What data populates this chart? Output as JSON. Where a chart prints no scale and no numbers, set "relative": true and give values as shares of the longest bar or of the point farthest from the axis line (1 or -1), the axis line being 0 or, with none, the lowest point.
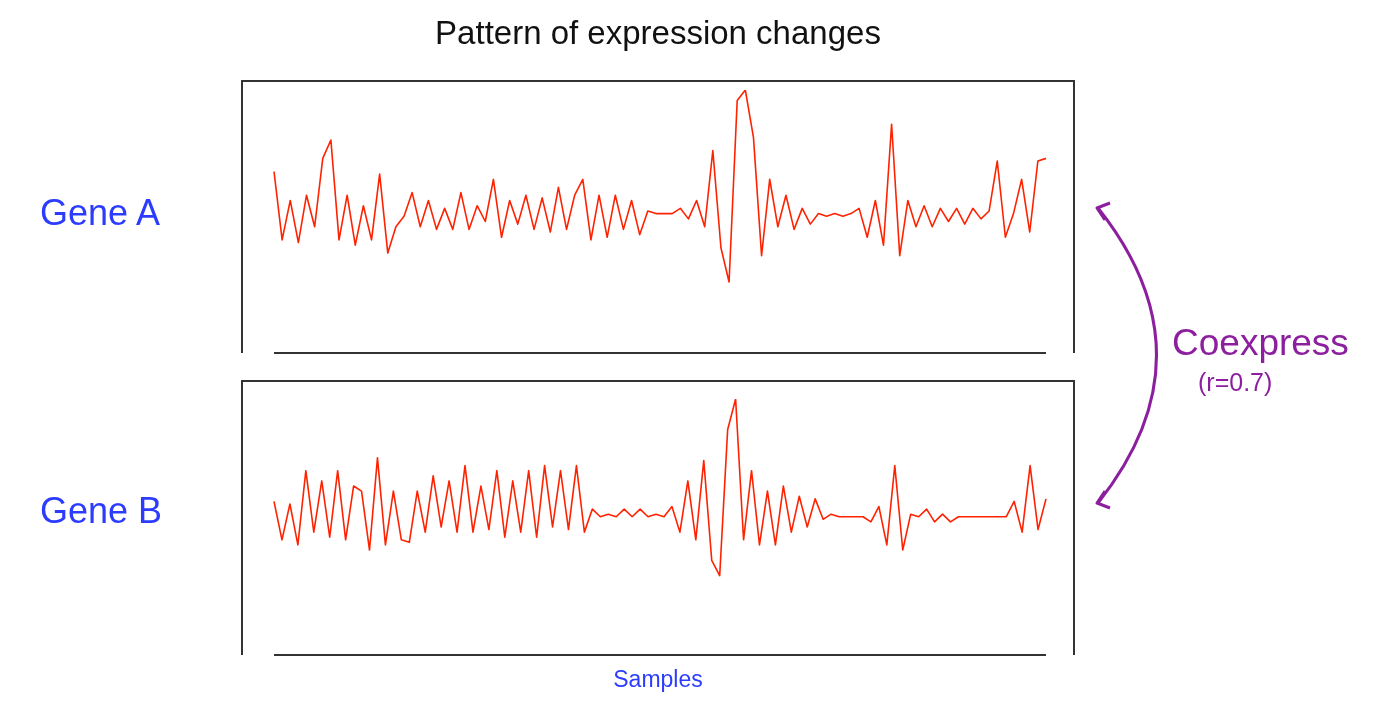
{
  "chart_data": [
    {
      "type": "line",
      "title": "Pattern of expression changes",
      "ylabel": "Gene A",
      "relative": true,
      "color": "#ff2200",
      "annotations": [
        "Coexpress",
        "(r=0.7)"
      ],
      "categories": [
        null,
        null,
        null,
        null,
        null,
        null,
        null,
        null,
        null,
        null,
        null,
        null,
        null,
        null,
        null,
        null,
        null,
        null,
        null,
        null,
        null,
        null,
        null,
        null,
        null,
        null,
        null,
        null,
        null,
        null,
        null,
        null,
        null,
        null,
        null,
        null,
        null,
        null,
        null,
        null,
        null,
        null,
        null,
        null,
        null,
        null,
        null,
        null,
        null,
        null,
        null,
        null,
        null,
        null,
        null,
        null,
        null,
        null,
        null,
        null,
        null,
        null,
        null,
        null,
        null,
        null,
        null,
        null,
        null,
        null,
        null,
        null,
        null,
        null,
        null,
        null,
        null,
        null,
        null,
        null,
        null,
        null,
        null,
        null,
        null,
        null,
        null,
        null,
        null,
        null,
        null,
        null,
        null,
        null,
        null,
        null
      ],
      "values": [
        0.69,
        0.43,
        0.58,
        0.42,
        0.6,
        0.48,
        0.74,
        0.81,
        0.43,
        0.6,
        0.41,
        0.56,
        0.43,
        0.68,
        0.38,
        0.48,
        0.52,
        0.61,
        0.48,
        0.58,
        0.47,
        0.55,
        0.47,
        0.61,
        0.47,
        0.56,
        0.5,
        0.66,
        0.44,
        0.58,
        0.49,
        0.6,
        0.47,
        0.59,
        0.46,
        0.63,
        0.47,
        0.6,
        0.66,
        0.43,
        0.6,
        0.44,
        0.6,
        0.47,
        0.58,
        0.45,
        0.54,
        0.53,
        0.53,
        0.53,
        0.55,
        0.51,
        0.58,
        0.48,
        0.77,
        0.4,
        0.27,
        0.96,
        1,
        0.82,
        0.37,
        0.66,
        0.48,
        0.6,
        0.47,
        0.55,
        0.49,
        0.53,
        0.52,
        0.53,
        0.52,
        0.53,
        0.55,
        0.44,
        0.58,
        0.41,
        0.87,
        0.37,
        0.58,
        0.48,
        0.56,
        0.48,
        0.55,
        0.5,
        0.55,
        0.49,
        0.55,
        0.51,
        0.54,
        0.73,
        0.44,
        0.53,
        0.66,
        0.46,
        0.73,
        0.74
      ]
    },
    {
      "type": "line",
      "ylabel": "Gene B",
      "xlabel": "Samples",
      "relative": true,
      "color": "#ff2200",
      "categories": [
        null,
        null,
        null,
        null,
        null,
        null,
        null,
        null,
        null,
        null,
        null,
        null,
        null,
        null,
        null,
        null,
        null,
        null,
        null,
        null,
        null,
        null,
        null,
        null,
        null,
        null,
        null,
        null,
        null,
        null,
        null,
        null,
        null,
        null,
        null,
        null,
        null,
        null,
        null,
        null,
        null,
        null,
        null,
        null,
        null,
        null,
        null,
        null,
        null,
        null,
        null,
        null,
        null,
        null,
        null,
        null,
        null,
        null,
        null,
        null,
        null,
        null,
        null,
        null,
        null,
        null,
        null,
        null,
        null,
        null,
        null,
        null,
        null,
        null,
        null,
        null,
        null,
        null,
        null,
        null,
        null,
        null,
        null,
        null,
        null,
        null,
        null,
        null,
        null,
        null,
        null,
        null,
        null,
        null,
        null,
        null,
        null,
        null
      ],
      "values": [
        0.6,
        0.45,
        0.59,
        0.43,
        0.72,
        0.48,
        0.68,
        0.46,
        0.72,
        0.45,
        0.66,
        0.64,
        0.41,
        0.77,
        0.43,
        0.64,
        0.45,
        0.44,
        0.64,
        0.48,
        0.7,
        0.5,
        0.68,
        0.48,
        0.74,
        0.48,
        0.66,
        0.49,
        0.72,
        0.46,
        0.68,
        0.48,
        0.72,
        0.46,
        0.74,
        0.5,
        0.72,
        0.49,
        0.74,
        0.48,
        0.57,
        0.54,
        0.55,
        0.54,
        0.57,
        0.54,
        0.57,
        0.54,
        0.55,
        0.54,
        0.58,
        0.48,
        0.68,
        0.45,
        0.76,
        0.37,
        0.31,
        0.88,
        1,
        0.45,
        0.72,
        0.43,
        0.64,
        0.43,
        0.66,
        0.48,
        0.62,
        0.5,
        0.61,
        0.53,
        0.55,
        0.54,
        0.54,
        0.54,
        0.54,
        0.52,
        0.58,
        0.43,
        0.74,
        0.41,
        0.55,
        0.54,
        0.57,
        0.52,
        0.55,
        0.52,
        0.54,
        0.54,
        0.54,
        0.54,
        0.54,
        0.54,
        0.54,
        0.6,
        0.48,
        0.74,
        0.49,
        0.61
      ]
    }
  ]
}
